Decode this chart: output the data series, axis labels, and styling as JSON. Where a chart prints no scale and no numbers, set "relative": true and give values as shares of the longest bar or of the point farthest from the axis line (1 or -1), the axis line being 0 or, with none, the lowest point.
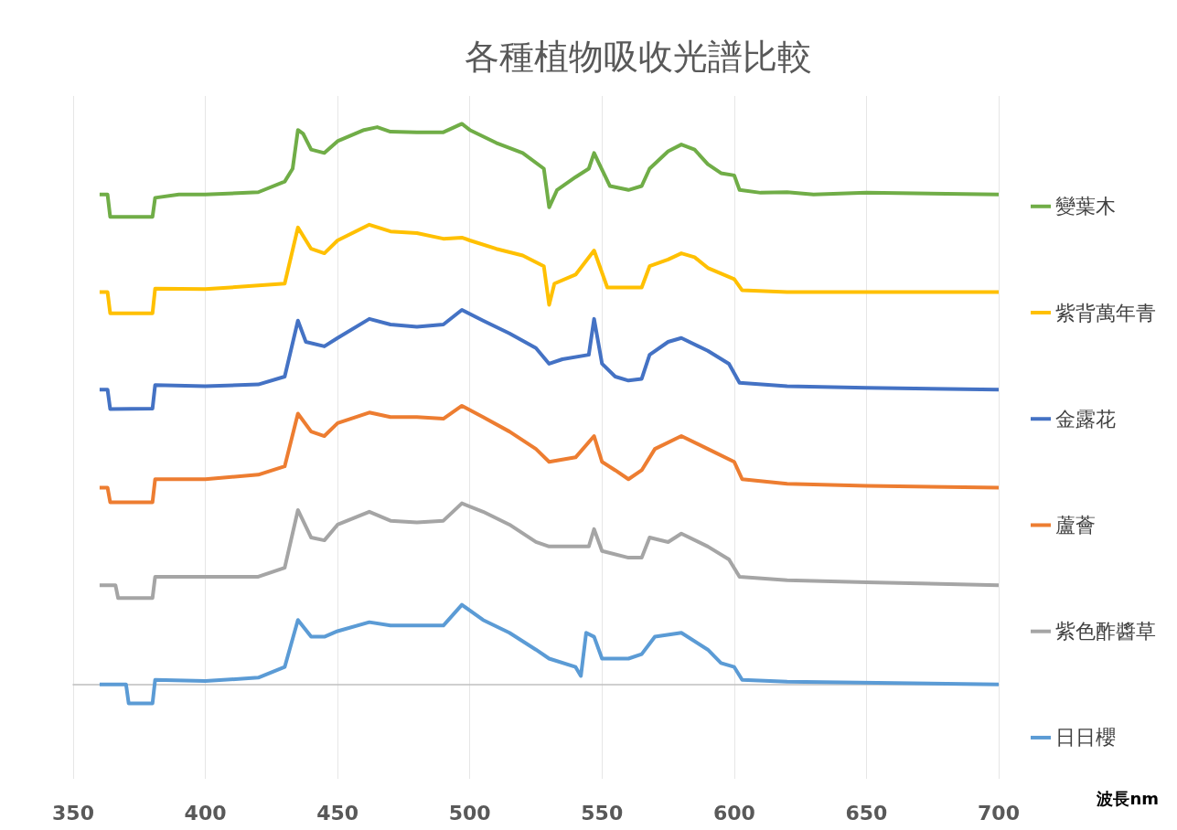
{
  "chart_data": {
    "type": "line",
    "title": "各種植物吸收光譜比較",
    "xlabel": "波長nm",
    "relative": true,
    "xlim": [
      350,
      700
    ],
    "xticks": [
      350,
      400,
      450,
      500,
      550,
      600,
      650,
      700
    ],
    "grid": "x",
    "legend": "right",
    "marker": "none",
    "line_style": "solid",
    "series": [
      {
        "name": "變葉木",
        "color": "#70ad47",
        "x": [
          360,
          363,
          364,
          380,
          381,
          390,
          400,
          420,
          430,
          433,
          435,
          437,
          440,
          445,
          450,
          460,
          465,
          470,
          480,
          490,
          497,
          500,
          510,
          520,
          528,
          530,
          533,
          540,
          545,
          547,
          549,
          553,
          560,
          565,
          568,
          575,
          580,
          585,
          590,
          595,
          600,
          602,
          610,
          620,
          630,
          650,
          700
        ],
        "values": [
          0.874,
          0.874,
          0.834,
          0.834,
          0.868,
          0.874,
          0.874,
          0.878,
          0.897,
          0.92,
          0.989,
          0.982,
          0.954,
          0.948,
          0.969,
          0.989,
          0.994,
          0.986,
          0.985,
          0.985,
          1,
          0.989,
          0.966,
          0.948,
          0.92,
          0.851,
          0.882,
          0.905,
          0.92,
          0.948,
          0.928,
          0.889,
          0.882,
          0.889,
          0.92,
          0.951,
          0.963,
          0.954,
          0.928,
          0.912,
          0.908,
          0.882,
          0.877,
          0.878,
          0.874,
          0.877,
          0.874
        ]
      },
      {
        "name": "紫背萬年青",
        "color": "#ffc000",
        "x": [
          360,
          363,
          364,
          380,
          381,
          400,
          430,
          435,
          440,
          445,
          450,
          462,
          470,
          480,
          490,
          497,
          500,
          510,
          520,
          528,
          530,
          532,
          540,
          547,
          552,
          560,
          565,
          568,
          575,
          580,
          585,
          590,
          600,
          603,
          620,
          700
        ],
        "values": [
          0.7,
          0.7,
          0.662,
          0.662,
          0.706,
          0.705,
          0.715,
          0.815,
          0.777,
          0.769,
          0.792,
          0.82,
          0.808,
          0.805,
          0.795,
          0.797,
          0.792,
          0.777,
          0.765,
          0.746,
          0.677,
          0.715,
          0.731,
          0.774,
          0.708,
          0.708,
          0.708,
          0.746,
          0.758,
          0.769,
          0.762,
          0.743,
          0.723,
          0.703,
          0.7,
          0.7
        ]
      },
      {
        "name": "金露花",
        "color": "#4472c4",
        "x": [
          360,
          363,
          364,
          380,
          381,
          400,
          420,
          430,
          435,
          438,
          445,
          450,
          462,
          470,
          480,
          490,
          497,
          505,
          515,
          525,
          530,
          535,
          545,
          547,
          550,
          555,
          560,
          565,
          568,
          575,
          580,
          590,
          598,
          602,
          620,
          650,
          700
        ],
        "values": [
          0.526,
          0.526,
          0.491,
          0.492,
          0.534,
          0.532,
          0.535,
          0.549,
          0.649,
          0.611,
          0.603,
          0.618,
          0.652,
          0.642,
          0.638,
          0.642,
          0.668,
          0.649,
          0.626,
          0.6,
          0.572,
          0.58,
          0.588,
          0.652,
          0.572,
          0.549,
          0.542,
          0.545,
          0.588,
          0.611,
          0.618,
          0.595,
          0.572,
          0.538,
          0.532,
          0.529,
          0.526
        ]
      },
      {
        "name": "蘆薈",
        "color": "#ed7d31",
        "x": [
          360,
          363,
          364,
          380,
          381,
          400,
          420,
          430,
          435,
          440,
          445,
          450,
          462,
          470,
          480,
          490,
          497,
          505,
          515,
          525,
          530,
          540,
          547,
          550,
          555,
          560,
          565,
          570,
          580,
          590,
          600,
          603,
          620,
          650,
          700
        ],
        "values": [
          0.351,
          0.351,
          0.325,
          0.325,
          0.366,
          0.366,
          0.374,
          0.389,
          0.483,
          0.451,
          0.443,
          0.466,
          0.485,
          0.477,
          0.477,
          0.474,
          0.497,
          0.477,
          0.451,
          0.42,
          0.397,
          0.405,
          0.443,
          0.397,
          0.382,
          0.366,
          0.382,
          0.42,
          0.443,
          0.42,
          0.397,
          0.366,
          0.358,
          0.354,
          0.351
        ]
      },
      {
        "name": "紫色酢醬草",
        "color": "#a5a5a5",
        "x": [
          360,
          366,
          367,
          380,
          381,
          400,
          420,
          430,
          435,
          440,
          445,
          450,
          462,
          470,
          480,
          490,
          497,
          505,
          515,
          525,
          530,
          545,
          547,
          550,
          560,
          565,
          568,
          575,
          580,
          590,
          598,
          602,
          620,
          650,
          700
        ],
        "values": [
          0.177,
          0.177,
          0.154,
          0.154,
          0.192,
          0.192,
          0.192,
          0.208,
          0.311,
          0.262,
          0.257,
          0.285,
          0.308,
          0.292,
          0.289,
          0.292,
          0.323,
          0.308,
          0.285,
          0.254,
          0.246,
          0.246,
          0.277,
          0.238,
          0.226,
          0.226,
          0.262,
          0.254,
          0.269,
          0.246,
          0.223,
          0.192,
          0.186,
          0.182,
          0.177
        ]
      },
      {
        "name": "日日櫻",
        "color": "#5b9bd5",
        "x": [
          360,
          370,
          371,
          380,
          381,
          400,
          420,
          430,
          435,
          440,
          445,
          450,
          462,
          470,
          480,
          490,
          497,
          505,
          515,
          525,
          530,
          540,
          542,
          544,
          547,
          550,
          560,
          565,
          570,
          580,
          590,
          595,
          600,
          603,
          620,
          700
        ],
        "values": [
          0,
          0,
          -0.034,
          -0.034,
          0.008,
          0.006,
          0.012,
          0.031,
          0.115,
          0.085,
          0.085,
          0.095,
          0.111,
          0.105,
          0.105,
          0.105,
          0.142,
          0.115,
          0.092,
          0.062,
          0.046,
          0.031,
          0.015,
          0.092,
          0.085,
          0.046,
          0.046,
          0.054,
          0.085,
          0.092,
          0.062,
          0.038,
          0.031,
          0.008,
          0.005,
          0
        ]
      }
    ]
  }
}
